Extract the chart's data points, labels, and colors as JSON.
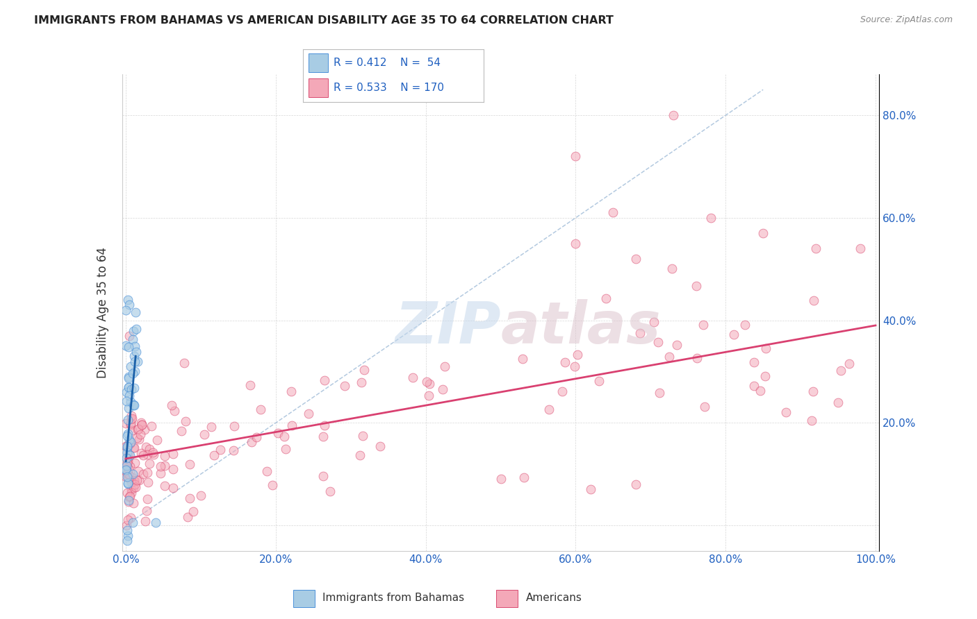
{
  "title": "IMMIGRANTS FROM BAHAMAS VS AMERICAN DISABILITY AGE 35 TO 64 CORRELATION CHART",
  "source": "Source: ZipAtlas.com",
  "ylabel": "Disability Age 35 to 64",
  "blue_color": "#a8cce4",
  "blue_edge_color": "#4a90d9",
  "pink_color": "#f4a8b8",
  "pink_edge_color": "#d94a70",
  "diag_color": "#a0bcd8",
  "blue_reg_color": "#1a5fa8",
  "pink_reg_color": "#d94070",
  "xlim": [
    -0.005,
    1.005
  ],
  "ylim": [
    -0.05,
    0.88
  ],
  "xticks": [
    0.0,
    0.2,
    0.4,
    0.6,
    0.8,
    1.0
  ],
  "xtick_labels": [
    "0.0%",
    "20.0%",
    "40.0%",
    "60.0%",
    "80.0%",
    "100.0%"
  ],
  "yticks": [
    0.0,
    0.2,
    0.4,
    0.6,
    0.8
  ],
  "ytick_labels": [
    "",
    "20.0%",
    "40.0%",
    "60.0%",
    "80.0%"
  ],
  "legend_blue_r": "R = 0.412",
  "legend_blue_n": "N =  54",
  "legend_pink_r": "R = 0.533",
  "legend_pink_n": "N = 170",
  "legend_color": "#2060c0",
  "watermark_zip_color": "#c5d8ec",
  "watermark_atlas_color": "#ddc5ce",
  "title_fontsize": 11.5,
  "source_fontsize": 9,
  "tick_fontsize": 11,
  "legend_fontsize": 11
}
